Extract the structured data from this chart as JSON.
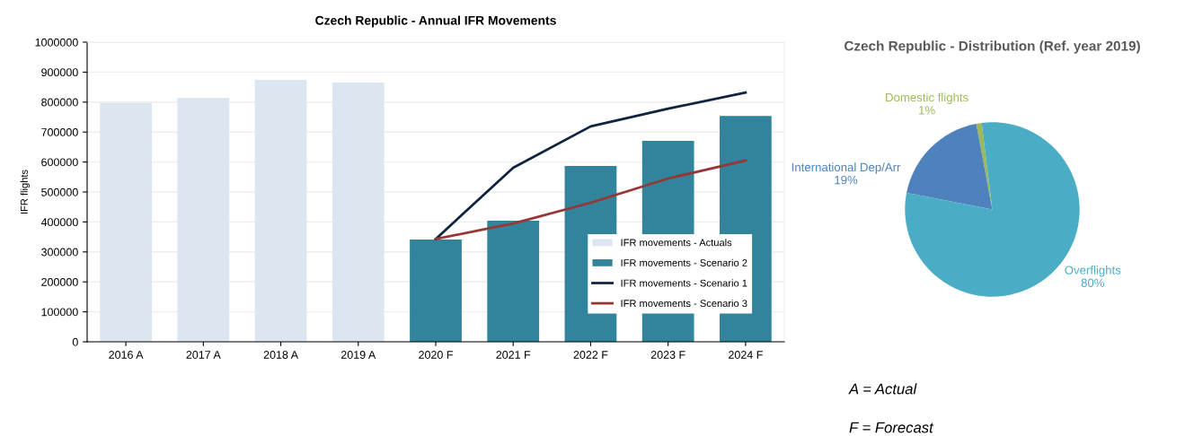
{
  "chart_data": [
    {
      "type": "bar",
      "title": "Czech Republic - Annual IFR Movements",
      "ylabel": "IFR flights",
      "categories": [
        "2016 A",
        "2017 A",
        "2018 A",
        "2019 A",
        "2020 F",
        "2021 F",
        "2022 F",
        "2023 F",
        "2024 F"
      ],
      "series": [
        {
          "name": "IFR movements - Actuals",
          "color": "#dce6f1",
          "values": [
            797000,
            814000,
            874000,
            865000,
            null,
            null,
            null,
            null,
            null
          ]
        },
        {
          "name": "IFR movements - Scenario 2",
          "color": "#31849b",
          "values": [
            null,
            null,
            null,
            null,
            341000,
            404000,
            587000,
            671000,
            754000
          ]
        },
        {
          "name": "IFR movements - Scenario 1",
          "type": "line",
          "color": "#0f243e",
          "values": [
            null,
            null,
            null,
            null,
            343000,
            581000,
            719000,
            778000,
            832000
          ]
        },
        {
          "name": "IFR movements - Scenario 3",
          "type": "line",
          "color": "#953735",
          "values": [
            null,
            null,
            null,
            null,
            343000,
            395000,
            464000,
            545000,
            605000
          ]
        }
      ],
      "ylim": [
        0,
        1000000
      ],
      "yticks": [
        0,
        100000,
        200000,
        300000,
        400000,
        500000,
        600000,
        700000,
        800000,
        900000,
        1000000
      ],
      "grid": "y",
      "legend": "bottom right"
    },
    {
      "type": "pie",
      "title": "Czech Republic - Distribution (Ref. year 2019)",
      "categories": [
        "Domestic flights 1%",
        "International Dep/Arr 19%",
        "Overflights 80%"
      ],
      "values": [
        1,
        19,
        80
      ],
      "colors": [
        "#9bbb59",
        "#4f81bd",
        "#4bacc6"
      ],
      "annotations": [
        "A = Actual",
        "F = Forecast"
      ]
    }
  ]
}
